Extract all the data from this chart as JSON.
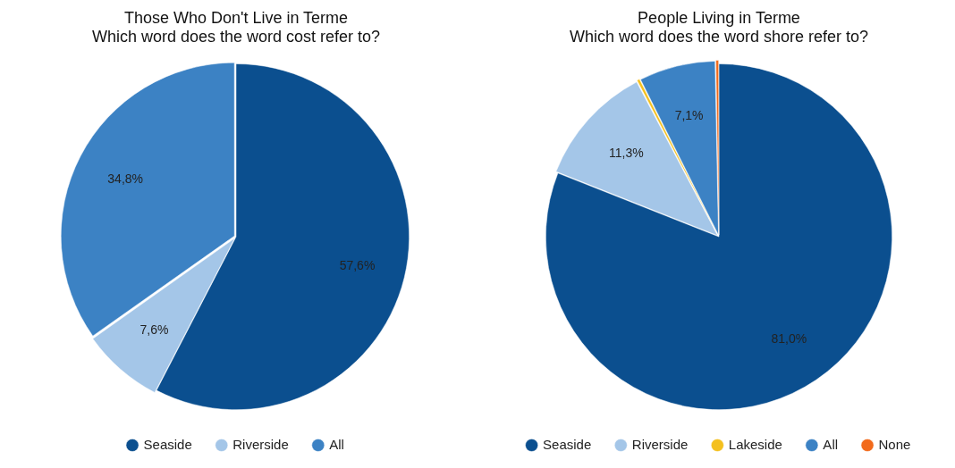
{
  "chart_data": [
    {
      "type": "pie",
      "title": "Those Who Don't Live in Terme",
      "subtitle": "Which word does the word cost refer to?",
      "categories": [
        "Seaside",
        "Riverside",
        "All"
      ],
      "values": [
        57.6,
        7.6,
        34.8
      ],
      "colors": [
        "#0b4f8f",
        "#a4c6e8",
        "#3c82c4"
      ],
      "value_labels": [
        "57,6%",
        "7,6%",
        "34,8%"
      ],
      "legend": "bottom"
    },
    {
      "type": "pie",
      "title": "People Living in Terme",
      "subtitle": "Which word does the word shore refer to?",
      "categories": [
        "Seaside",
        "Riverside",
        "Lakeside",
        "All",
        "None"
      ],
      "values": [
        81.0,
        11.3,
        0.3,
        7.1,
        0.3
      ],
      "colors": [
        "#0b4f8f",
        "#a4c6e8",
        "#f4c01e",
        "#3c82c4",
        "#f26a1b"
      ],
      "value_labels": [
        "81,0%",
        "11,3%",
        null,
        "7,1%",
        null
      ],
      "legend": "bottom"
    }
  ]
}
